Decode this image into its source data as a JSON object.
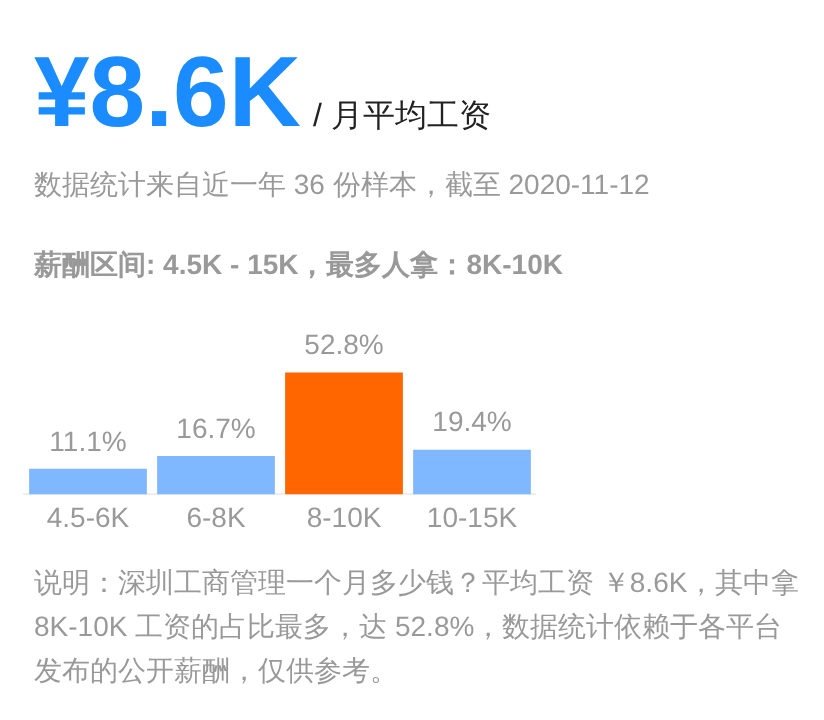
{
  "chart_data": {
    "type": "bar",
    "title": "¥8.6K",
    "subtitle": "/ 月平均工资",
    "annotations": [
      "数据统计来自近一年 36 份样本，截至 2020-11-12",
      "薪酬区间: 4.5K - 15K，最多人拿：8K-10K",
      "说明：深圳工商管理一个月多少钱？平均工资 ￥8.6K，其中拿 8K-10K 工资的占比最多，达 52.8%，数据统计依赖于各平台发布的公开薪酬，仅供参考。"
    ],
    "categories": [
      "4.5-6K",
      "6-8K",
      "8-10K",
      "10-15K"
    ],
    "values": [
      11.1,
      16.7,
      52.8,
      19.4
    ],
    "colors": [
      "#80b8ff",
      "#80b8ff",
      "#ff6600",
      "#80b8ff"
    ],
    "value_labels": [
      "11.1%",
      "16.7%",
      "52.8%",
      "19.4%"
    ],
    "grid": false,
    "legend": false
  }
}
